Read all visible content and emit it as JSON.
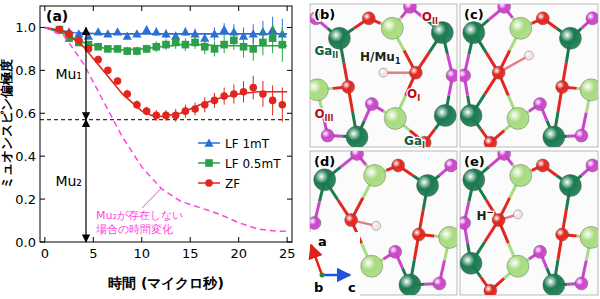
{
  "chart_data": {
    "type": "scatter",
    "title": "(a)",
    "x_label": "時間 (マイクロ秒)",
    "y_label": "ミュオンスピン偏極度",
    "xlim": [
      -0.5,
      25.5
    ],
    "xticks": [
      0,
      5,
      10,
      15,
      20,
      25
    ],
    "ylim": [
      0,
      1.1
    ],
    "yticks": [
      {
        "value": 0,
        "label": "0.0"
      },
      0.2,
      0.4,
      0.6,
      0.8,
      {
        "value": 1,
        "label": "1.0"
      }
    ],
    "legend": "right",
    "series": [
      {
        "name": "LF 1mT",
        "color": "#2b6fd6",
        "marker": "triangle",
        "x": [
          1.5,
          2.5,
          3.5,
          4.5,
          5.5,
          6.5,
          7.5,
          8.5,
          9.5,
          10.5,
          11.5,
          12.5,
          13.5,
          14.5,
          15.5,
          16.5,
          17.5,
          18.5,
          19.5,
          20.5,
          21.5,
          22.5,
          23.5,
          24.5
        ],
        "values": [
          0.99,
          0.98,
          0.97,
          0.96,
          0.98,
          0.97,
          0.98,
          0.96,
          0.97,
          0.99,
          0.98,
          0.97,
          0.96,
          0.98,
          0.97,
          0.95,
          0.97,
          0.99,
          0.98,
          0.96,
          0.97,
          0.98,
          0.99,
          0.97
        ],
        "errors": [
          0.01,
          0.01,
          0.01,
          0.01,
          0.01,
          0.01,
          0.01,
          0.015,
          0.015,
          0.015,
          0.02,
          0.02,
          0.02,
          0.02,
          0.025,
          0.025,
          0.03,
          0.03,
          0.035,
          0.04,
          0.045,
          0.05,
          0.06,
          0.07
        ],
        "fit": {
          "x": [
            0,
            3,
            6,
            10,
            15,
            20,
            25
          ],
          "values": [
            1.0,
            0.975,
            0.97,
            0.97,
            0.97,
            0.97,
            0.97
          ]
        }
      },
      {
        "name": "LF 0.5mT",
        "color": "#2ca048",
        "marker": "square",
        "x": [
          1.5,
          2.5,
          3.5,
          4.5,
          5.5,
          6.5,
          7.5,
          8.5,
          9.5,
          10.5,
          11.5,
          12.5,
          13.5,
          14.5,
          15.5,
          16.5,
          17.5,
          18.5,
          19.5,
          20.5,
          21.5,
          22.5,
          23.5,
          24.5
        ],
        "values": [
          0.99,
          0.95,
          0.93,
          0.92,
          0.91,
          0.9,
          0.9,
          0.89,
          0.89,
          0.9,
          0.91,
          0.92,
          0.93,
          0.92,
          0.93,
          0.91,
          0.9,
          0.92,
          0.94,
          0.91,
          0.9,
          0.93,
          0.95,
          0.92
        ],
        "errors": [
          0.01,
          0.01,
          0.012,
          0.012,
          0.015,
          0.015,
          0.015,
          0.02,
          0.02,
          0.02,
          0.025,
          0.025,
          0.03,
          0.03,
          0.03,
          0.035,
          0.035,
          0.04,
          0.045,
          0.05,
          0.055,
          0.06,
          0.07,
          0.08
        ],
        "fit": {
          "x": [
            0,
            2,
            4,
            6,
            8,
            10,
            12,
            14,
            16,
            18,
            20,
            22,
            25
          ],
          "values": [
            1.0,
            0.97,
            0.93,
            0.905,
            0.895,
            0.9,
            0.91,
            0.92,
            0.92,
            0.915,
            0.915,
            0.915,
            0.915
          ]
        }
      },
      {
        "name": "ZF",
        "color": "#e0261e",
        "marker": "circle",
        "x": [
          1.5,
          2.5,
          3.5,
          4.5,
          5.5,
          6.5,
          7.5,
          8.5,
          9.5,
          10.5,
          11.5,
          12.5,
          13.5,
          14.5,
          15.5,
          16.5,
          17.5,
          18.5,
          19.5,
          20.5,
          21.5,
          22.5,
          23.5,
          24.5
        ],
        "values": [
          0.99,
          0.97,
          0.94,
          0.9,
          0.85,
          0.8,
          0.75,
          0.69,
          0.64,
          0.61,
          0.59,
          0.59,
          0.59,
          0.61,
          0.62,
          0.64,
          0.66,
          0.68,
          0.69,
          0.7,
          0.72,
          0.69,
          0.66,
          0.64
        ],
        "errors": [
          0.01,
          0.01,
          0.012,
          0.012,
          0.015,
          0.015,
          0.015,
          0.02,
          0.02,
          0.02,
          0.025,
          0.025,
          0.03,
          0.03,
          0.03,
          0.035,
          0.035,
          0.04,
          0.045,
          0.05,
          0.055,
          0.06,
          0.07,
          0.08
        ],
        "fit": {
          "x": [
            0,
            2,
            4,
            6,
            8,
            10,
            11,
            12,
            14,
            16,
            18,
            20,
            22,
            25
          ],
          "values": [
            1.0,
            0.98,
            0.91,
            0.8,
            0.69,
            0.61,
            0.59,
            0.585,
            0.6,
            0.64,
            0.67,
            0.69,
            0.7,
            0.7
          ]
        }
      },
      {
        "type": "line",
        "line_style": "dashed",
        "color": "#ff44dd",
        "x": [
          0,
          2,
          4,
          6,
          8,
          10,
          12,
          14,
          16,
          18,
          20,
          22,
          24,
          25
        ],
        "values": [
          1.0,
          0.96,
          0.83,
          0.66,
          0.49,
          0.35,
          0.25,
          0.19,
          0.16,
          0.13,
          0.09,
          0.06,
          0.05,
          0.05
        ]
      }
    ],
    "annotations": {
      "hline": 0.57,
      "mu1": {
        "label": "Mu₁",
        "from": 0.57,
        "to": 1.0
      },
      "mu2": {
        "label": "Mu₂",
        "from": 0,
        "to": 0.57
      },
      "curve_note": [
        "Mu₂が存在しない",
        "場合の時間変化"
      ]
    }
  },
  "panels": [
    {
      "label": "(b)",
      "atom_labels": [
        {
          "text": "Ga",
          "sub": "II"
        },
        {
          "text": "O",
          "sub": "II"
        },
        {
          "text": "H/Mu",
          "sub": "1"
        },
        {
          "text": "O",
          "sub": "III"
        },
        {
          "text": "O",
          "sub": "I"
        },
        {
          "text": "Ga",
          "sub": "I"
        }
      ]
    },
    {
      "label": "(c)",
      "atom_labels": []
    },
    {
      "label": "(d)",
      "atom_labels": []
    },
    {
      "label": "(e)",
      "atom_labels": [
        {
          "text": "H",
          "sup": "−"
        }
      ]
    }
  ],
  "axes": [
    "a",
    "b",
    "c"
  ]
}
